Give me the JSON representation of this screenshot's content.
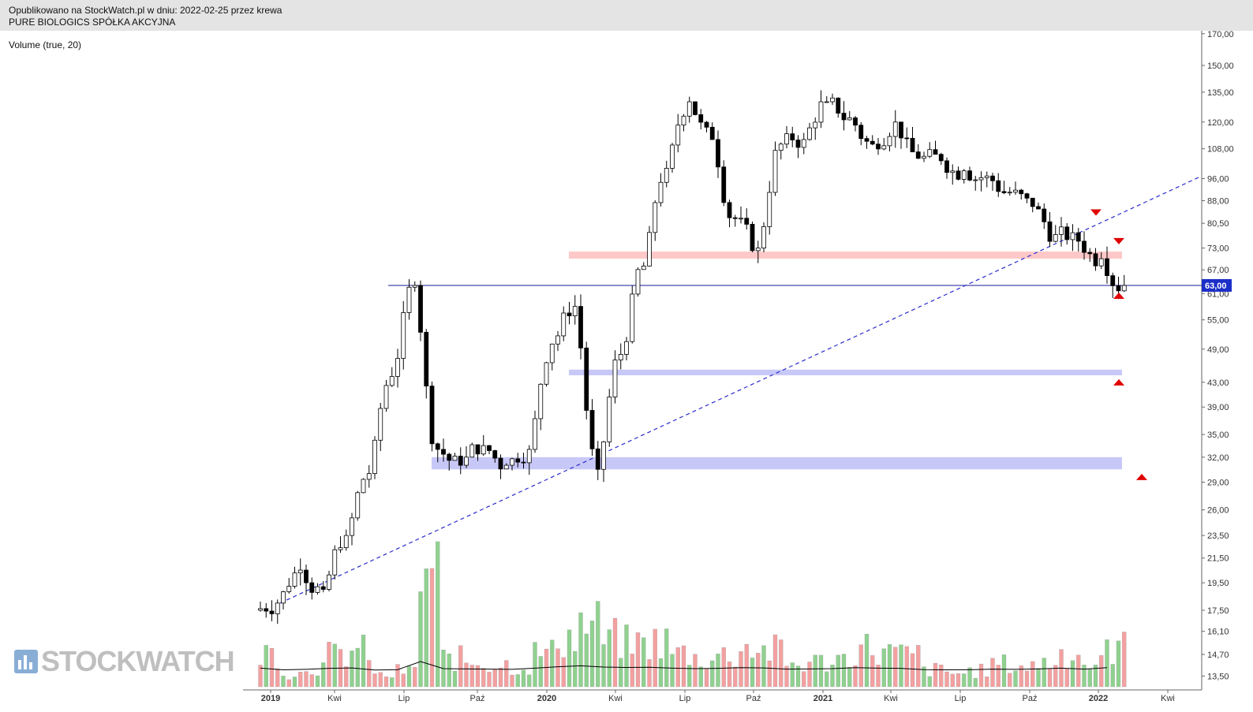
{
  "header": {
    "published": "Opublikowano na StockWatch.pl w dniu: 2022-02-25 przez krewa",
    "title": "PURE BIOLOGICS SPÓŁKA AKCYJNA"
  },
  "volume_label": "Volume (true, 20)",
  "logo_text": "STOCKWATCH",
  "colors": {
    "up_candle": "#ffffff",
    "down_candle": "#000000",
    "volume_up": "#8fd18f",
    "volume_down": "#f4a0a0",
    "support_zone": "#c8c8f8",
    "resistance_zone": "#ffc8c8",
    "trendline": "#2b2bd0",
    "horizontal_line": "#1a1a99",
    "marker": "#e00000",
    "price_tag": "#1c2ec8"
  },
  "chart_data": {
    "type": "candlestick",
    "title": "PURE BIOLOGICS SPÓŁKA AKCYJNA",
    "yscale": "log",
    "y_ticks": [
      "170,00",
      "150,00",
      "135,00",
      "120,00",
      "108,00",
      "96,00",
      "88,00",
      "80,50",
      "73,00",
      "67,00",
      "61,00",
      "55,00",
      "49,00",
      "43,00",
      "39,00",
      "35,00",
      "32,00",
      "29,00",
      "26,00",
      "23,50",
      "21,50",
      "19,50",
      "17,50",
      "16,10",
      "14,70",
      "13,50"
    ],
    "x_ticks": [
      "2019",
      "Kwi",
      "Lip",
      "Paź",
      "2020",
      "Kwi",
      "Lip",
      "Paź",
      "2021",
      "Kwi",
      "Lip",
      "Paź",
      "2022",
      "Kwi"
    ],
    "last_price": "63,00",
    "ylim": [
      12.9,
      172
    ],
    "series": [
      {
        "name": "price",
        "ohlc_keypoints_close": [
          [
            "2019-01",
            18.0
          ],
          [
            "2019-02",
            20.5
          ],
          [
            "2019-03",
            19.0
          ],
          [
            "2019-04",
            23.5
          ],
          [
            "2019-05",
            30.0
          ],
          [
            "2019-06",
            44.0
          ],
          [
            "2019-07",
            63.0
          ],
          [
            "2019-08",
            33.0
          ],
          [
            "2019-09",
            31.0
          ],
          [
            "2019-10",
            33.5
          ],
          [
            "2019-11",
            31.0
          ],
          [
            "2019-12",
            33.0
          ],
          [
            "2020-01",
            50.0
          ],
          [
            "2020-02",
            58.0
          ],
          [
            "2020-03",
            30.5
          ],
          [
            "2020-04",
            48.0
          ],
          [
            "2020-05",
            68.0
          ],
          [
            "2020-06",
            100.0
          ],
          [
            "2020-07",
            130.0
          ],
          [
            "2020-08",
            112.0
          ],
          [
            "2020-09",
            82.0
          ],
          [
            "2020-10",
            73.0
          ],
          [
            "2020-11",
            110.0
          ],
          [
            "2020-12",
            112.0
          ],
          [
            "2021-01",
            130.0
          ],
          [
            "2021-02",
            122.0
          ],
          [
            "2021-03",
            110.0
          ],
          [
            "2021-04",
            120.0
          ],
          [
            "2021-05",
            104.0
          ],
          [
            "2021-06",
            103.0
          ],
          [
            "2021-07",
            99.0
          ],
          [
            "2021-08",
            97.0
          ],
          [
            "2021-09",
            91.0
          ],
          [
            "2021-10",
            86.0
          ],
          [
            "2021-11",
            77.0
          ],
          [
            "2021-12",
            75.0
          ],
          [
            "2022-01",
            70.0
          ],
          [
            "2022-02",
            63.0
          ]
        ]
      }
    ],
    "volume": [
      {
        "month": "2019-01",
        "value": 0.3
      },
      {
        "month": "2019-02",
        "value": 0.12
      },
      {
        "month": "2019-03",
        "value": 0.18
      },
      {
        "month": "2019-04",
        "value": 0.28
      },
      {
        "month": "2019-05",
        "value": 0.32
      },
      {
        "month": "2019-06",
        "value": 0.1
      },
      {
        "month": "2019-07",
        "value": 0.14
      },
      {
        "month": "2019-08",
        "value": 1.0
      },
      {
        "month": "2019-09",
        "value": 0.25
      },
      {
        "month": "2019-10",
        "value": 0.22
      },
      {
        "month": "2019-11",
        "value": 0.2
      },
      {
        "month": "2019-12",
        "value": 0.18
      },
      {
        "month": "2020-01",
        "value": 0.3
      },
      {
        "month": "2020-02",
        "value": 0.45
      },
      {
        "month": "2020-03",
        "value": 0.55
      },
      {
        "month": "2020-04",
        "value": 0.42
      },
      {
        "month": "2020-05",
        "value": 0.38
      },
      {
        "month": "2020-06",
        "value": 0.4
      },
      {
        "month": "2020-07",
        "value": 0.3
      },
      {
        "month": "2020-08",
        "value": 0.25
      },
      {
        "month": "2020-09",
        "value": 0.28
      },
      {
        "month": "2020-10",
        "value": 0.35
      },
      {
        "month": "2020-11",
        "value": 0.32
      },
      {
        "month": "2020-12",
        "value": 0.2
      },
      {
        "month": "2021-01",
        "value": 0.22
      },
      {
        "month": "2021-02",
        "value": 0.25
      },
      {
        "month": "2021-03",
        "value": 0.35
      },
      {
        "month": "2021-04",
        "value": 0.3
      },
      {
        "month": "2021-05",
        "value": 0.28
      },
      {
        "month": "2021-06",
        "value": 0.15
      },
      {
        "month": "2021-07",
        "value": 0.12
      },
      {
        "month": "2021-08",
        "value": 0.14
      },
      {
        "month": "2021-09",
        "value": 0.2
      },
      {
        "month": "2021-10",
        "value": 0.18
      },
      {
        "month": "2021-11",
        "value": 0.22
      },
      {
        "month": "2021-12",
        "value": 0.3
      },
      {
        "month": "2022-01",
        "value": 0.2
      },
      {
        "month": "2022-02",
        "value": 0.35
      }
    ],
    "volume_average_period": 20,
    "annotations": [
      {
        "type": "horizontal_line",
        "price": 63.0,
        "from": "2019-07",
        "to": "end"
      },
      {
        "type": "zone",
        "color": "resistance",
        "from": "2020-03",
        "to": "2022-03",
        "price_low": 70.0,
        "price_high": 72.0
      },
      {
        "type": "zone",
        "color": "support",
        "from": "2020-03",
        "to": "2022-03",
        "price_low": 44.2,
        "price_high": 45.2
      },
      {
        "type": "zone",
        "color": "support",
        "from": "2019-09",
        "to": "2022-03",
        "price_low": 30.5,
        "price_high": 32.0
      },
      {
        "type": "trendline",
        "style": "dashed",
        "from": [
          "2019-01",
          18.0
        ],
        "to": [
          "2022-04",
          97.0
        ]
      },
      {
        "type": "marker_down",
        "month": "2022-01",
        "price": 84.0
      },
      {
        "type": "marker_down",
        "month": "2022-02",
        "price": 75.0
      },
      {
        "type": "marker_up",
        "month": "2022-02",
        "price": 60.5
      },
      {
        "type": "marker_up",
        "month": "2022-02",
        "price": 43.0
      },
      {
        "type": "marker_up",
        "month": "2022-03",
        "price": 29.6
      }
    ]
  }
}
